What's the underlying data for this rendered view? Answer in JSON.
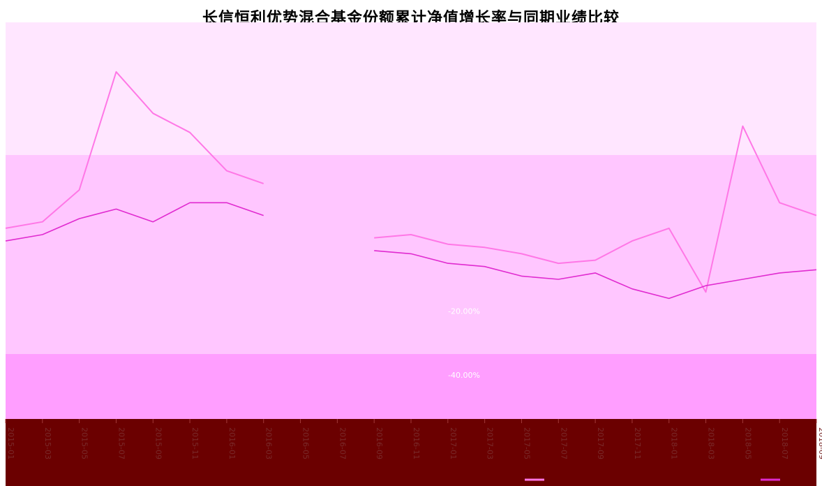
{
  "title": "长信恒利优势混合基金份额累计净值增长率与同期业绩比较",
  "colors": {
    "background_top": "#ffe6ff",
    "background_mid": "#ffc6ff",
    "background_low": "#ff9eff",
    "bottom_band": "#6b0000",
    "fund_line": "#ff77e6",
    "benchmark_line": "#e02bd0"
  },
  "chart_data": {
    "type": "line",
    "title": "长信恒利优势混合基金份额累计净值增长率与同期业绩比较",
    "xlabel": "",
    "ylabel": "",
    "y_axis_labels": [
      "-20.00%",
      "-40.00%"
    ],
    "x": [
      "2015-01",
      "2015-03",
      "2015-05",
      "2015-07",
      "2015-09",
      "2015-11",
      "2016-01",
      "2016-03",
      "2016-05",
      "2016-07",
      "2016-09",
      "2016-11",
      "2017-01",
      "2017-03",
      "2017-05",
      "2017-07",
      "2017-09",
      "2017-11",
      "2018-01",
      "2018-03",
      "2018-05",
      "2018-07",
      "2018-09"
    ],
    "series": [
      {
        "values": [
          6,
          8,
          18,
          55,
          42,
          36,
          24,
          20,
          null,
          null,
          3,
          4,
          1,
          0,
          -2,
          -5,
          -4,
          2,
          6,
          -14,
          38,
          14,
          10
        ]
      },
      {
        "values": [
          2,
          4,
          9,
          12,
          8,
          14,
          14,
          10,
          null,
          null,
          -1,
          -2,
          -5,
          -6,
          -9,
          -10,
          -8,
          -13,
          -16,
          -12,
          -10,
          -8,
          -7
        ]
      }
    ]
  }
}
